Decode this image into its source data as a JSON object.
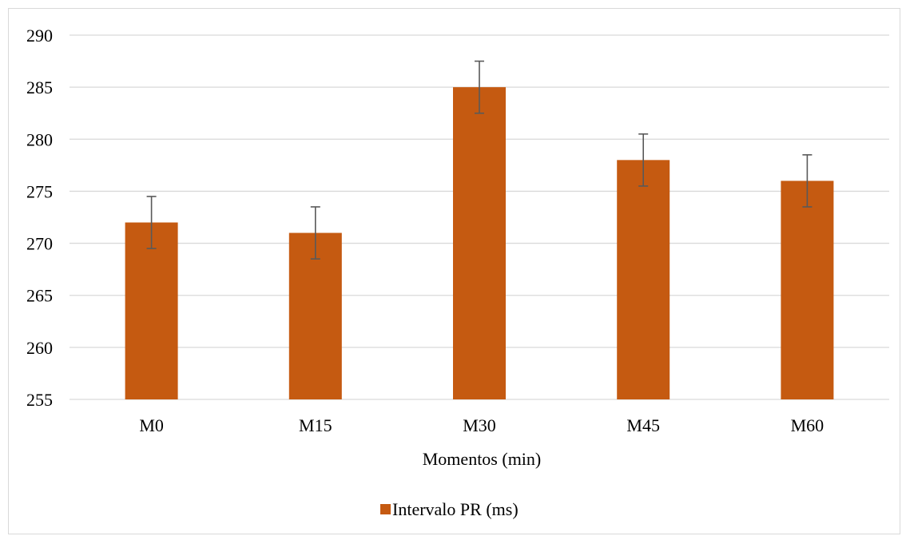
{
  "chart_data": {
    "type": "bar",
    "categories": [
      "M0",
      "M15",
      "M30",
      "M45",
      "M60"
    ],
    "series": [
      {
        "name": "Intervalo PR (ms)",
        "values": [
          272,
          271,
          285,
          278,
          276
        ],
        "error": [
          2.5,
          2.5,
          2.5,
          2.5,
          2.5
        ]
      }
    ],
    "xlabel": "Momentos (min)",
    "ylabel": "",
    "ylim": [
      255,
      290
    ],
    "yticks": [
      255,
      260,
      265,
      270,
      275,
      280,
      285,
      290
    ],
    "grid": true,
    "legend_position": "bottom",
    "colors": {
      "bar": "#c55a11",
      "error_bar": "#595959",
      "grid": "#d9d9d9"
    }
  }
}
